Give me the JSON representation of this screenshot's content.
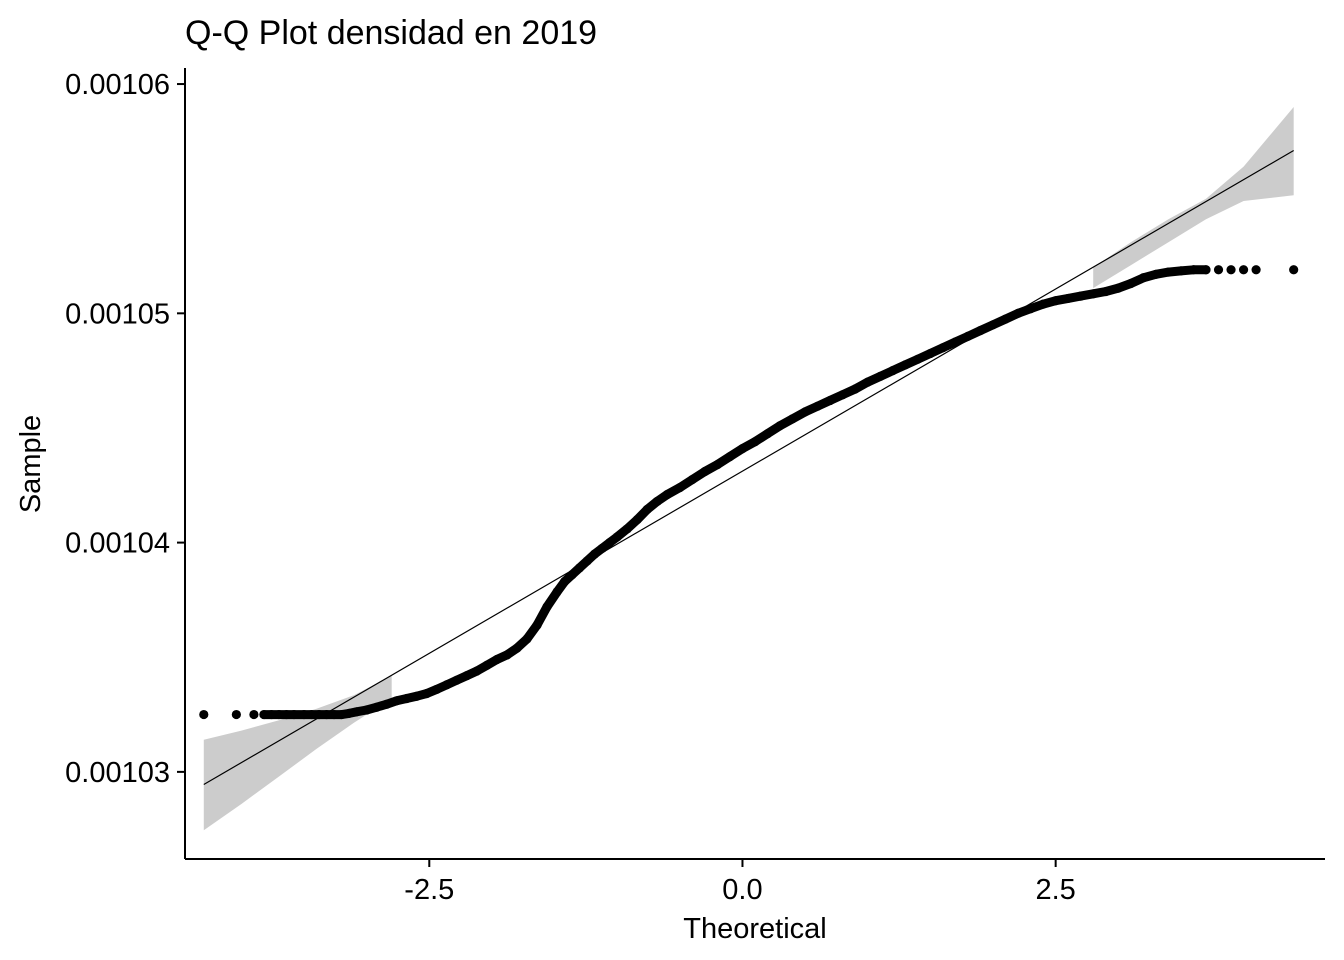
{
  "chart_data": {
    "type": "scatter",
    "title": "Q-Q Plot densidad en 2019",
    "xlabel": "Theoretical",
    "ylabel": "Sample",
    "xlim": [
      -4.45,
      4.65
    ],
    "ylim": [
      0.0010262,
      0.0010607
    ],
    "x_ticks": [
      -2.5,
      0.0,
      2.5
    ],
    "x_tick_labels": [
      "-2.5",
      "0.0",
      "2.5"
    ],
    "y_ticks": [
      0.00103,
      0.00104,
      0.00105,
      0.00106
    ],
    "y_tick_labels": [
      "0.00103",
      "0.00104",
      "0.00105",
      "0.00106"
    ],
    "grid": false,
    "legend": "none",
    "point_color": "#000000",
    "ribbon_color": "#cccccc",
    "points": {
      "name": "sample quantiles",
      "x": [
        -4.3,
        -4.04,
        -3.9,
        -3.82,
        -3.76,
        -3.7,
        -3.64,
        -3.58,
        -3.5,
        -3.44,
        -3.38,
        -3.32,
        -3.26,
        -3.2,
        -3.14,
        -3.08,
        -3.0,
        -2.92,
        -2.84,
        -2.76,
        -2.68,
        -2.6,
        -2.52,
        -2.44,
        -2.36,
        -2.28,
        -2.2,
        -2.12,
        -2.04,
        -1.96,
        -1.88,
        -1.8,
        -1.72,
        -1.64,
        -1.56,
        -1.48,
        -1.42,
        -1.36,
        -1.3,
        -1.24,
        -1.18,
        -1.12,
        -1.06,
        -1.0,
        -0.92,
        -0.84,
        -0.76,
        -0.68,
        -0.6,
        -0.5,
        -0.4,
        -0.3,
        -0.2,
        -0.1,
        0.0,
        0.1,
        0.2,
        0.3,
        0.4,
        0.5,
        0.6,
        0.7,
        0.8,
        0.9,
        1.0,
        1.1,
        1.2,
        1.3,
        1.4,
        1.5,
        1.6,
        1.7,
        1.8,
        1.9,
        2.0,
        2.1,
        2.2,
        2.3,
        2.4,
        2.5,
        2.6,
        2.7,
        2.8,
        2.9,
        3.0,
        3.1,
        3.2,
        3.3,
        3.4,
        3.5,
        3.6,
        3.7,
        3.8,
        3.9,
        4.0,
        4.1,
        4.4
      ],
      "y": [
        0.0010325,
        0.0010325,
        0.0010325,
        0.0010325,
        0.0010325,
        0.0010325,
        0.0010325,
        0.0010325,
        0.0010325,
        0.0010325,
        0.0010325,
        0.0010325,
        0.0010325,
        0.0010325,
        0.00103255,
        0.00103262,
        0.0010327,
        0.00103282,
        0.00103295,
        0.0010331,
        0.0010332,
        0.0010333,
        0.00103342,
        0.0010336,
        0.0010338,
        0.001034,
        0.0010342,
        0.0010344,
        0.00103465,
        0.0010349,
        0.0010351,
        0.0010354,
        0.0010358,
        0.0010364,
        0.0010372,
        0.00103785,
        0.0010383,
        0.0010386,
        0.0010389,
        0.0010392,
        0.0010395,
        0.00103975,
        0.00104,
        0.00104025,
        0.0010406,
        0.001041,
        0.00104145,
        0.0010418,
        0.0010421,
        0.0010424,
        0.00104275,
        0.0010431,
        0.0010434,
        0.00104375,
        0.0010441,
        0.0010444,
        0.00104475,
        0.0010451,
        0.0010454,
        0.0010457,
        0.00104595,
        0.0010462,
        0.00104645,
        0.0010467,
        0.001047,
        0.00104725,
        0.0010475,
        0.00104775,
        0.001048,
        0.00104825,
        0.0010485,
        0.00104875,
        0.001049,
        0.00104925,
        0.0010495,
        0.00104975,
        0.00105,
        0.0010502,
        0.0010504,
        0.00105055,
        0.00105065,
        0.00105075,
        0.00105085,
        0.00105095,
        0.0010511,
        0.0010513,
        0.00105155,
        0.0010517,
        0.0010518,
        0.00105185,
        0.0010519,
        0.0010519,
        0.0010519,
        0.0010519,
        0.0010519,
        0.0010519,
        0.0010519
      ]
    },
    "reference_line": {
      "name": "qq line",
      "x": [
        -4.3,
        4.4
      ],
      "y": [
        0.00102945,
        0.0010571
      ]
    },
    "confidence_band": {
      "name": "confidence band",
      "x": [
        -4.3,
        -4.0,
        -3.7,
        -3.4,
        -3.1,
        -2.8,
        2.8,
        3.1,
        3.4,
        3.7,
        4.0,
        4.4
      ],
      "lower": [
        0.00102745,
        0.0010286,
        0.0010298,
        0.001031,
        0.00103215,
        0.0010332,
        0.0010511,
        0.0010521,
        0.0010531,
        0.0010541,
        0.0010549,
        0.00105515
      ],
      "upper": [
        0.0010314,
        0.0010318,
        0.00103225,
        0.00103275,
        0.00103335,
        0.0010342,
        0.001052,
        0.0010531,
        0.0010541,
        0.001055,
        0.0010564,
        0.001059
      ]
    }
  }
}
